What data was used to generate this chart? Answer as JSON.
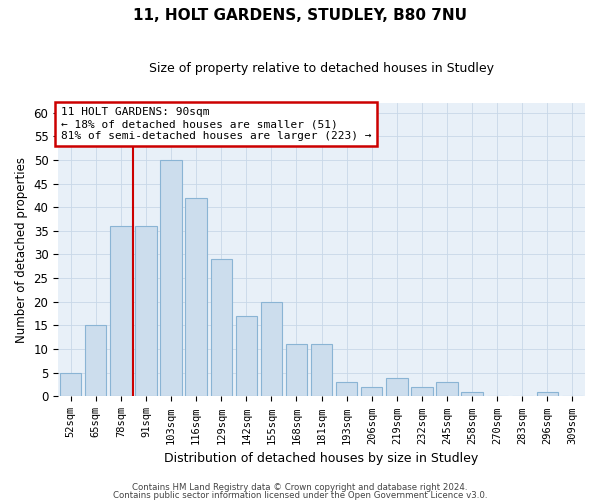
{
  "title1": "11, HOLT GARDENS, STUDLEY, B80 7NU",
  "title2": "Size of property relative to detached houses in Studley",
  "xlabel": "Distribution of detached houses by size in Studley",
  "ylabel": "Number of detached properties",
  "categories": [
    "52sqm",
    "65sqm",
    "78sqm",
    "91sqm",
    "103sqm",
    "116sqm",
    "129sqm",
    "142sqm",
    "155sqm",
    "168sqm",
    "181sqm",
    "193sqm",
    "206sqm",
    "219sqm",
    "232sqm",
    "245sqm",
    "258sqm",
    "270sqm",
    "283sqm",
    "296sqm",
    "309sqm"
  ],
  "values": [
    5,
    15,
    36,
    36,
    50,
    42,
    29,
    17,
    20,
    11,
    11,
    3,
    2,
    4,
    2,
    3,
    1,
    0,
    0,
    1,
    0
  ],
  "bar_color": "#ccdded",
  "bar_edge_color": "#8ab4d4",
  "grid_color": "#c8d8e8",
  "vline_color": "#cc0000",
  "annotation_box_color": "#cc0000",
  "annotation_line1": "11 HOLT GARDENS: 90sqm",
  "annotation_line2": "← 18% of detached houses are smaller (51)",
  "annotation_line3": "81% of semi-detached houses are larger (223) →",
  "ylim": [
    0,
    62
  ],
  "yticks": [
    0,
    5,
    10,
    15,
    20,
    25,
    30,
    35,
    40,
    45,
    50,
    55,
    60
  ],
  "footer1": "Contains HM Land Registry data © Crown copyright and database right 2024.",
  "footer2": "Contains public sector information licensed under the Open Government Licence v3.0.",
  "background_color": "#e8f0f8",
  "fig_background": "#ffffff",
  "vline_bar_index": 2
}
